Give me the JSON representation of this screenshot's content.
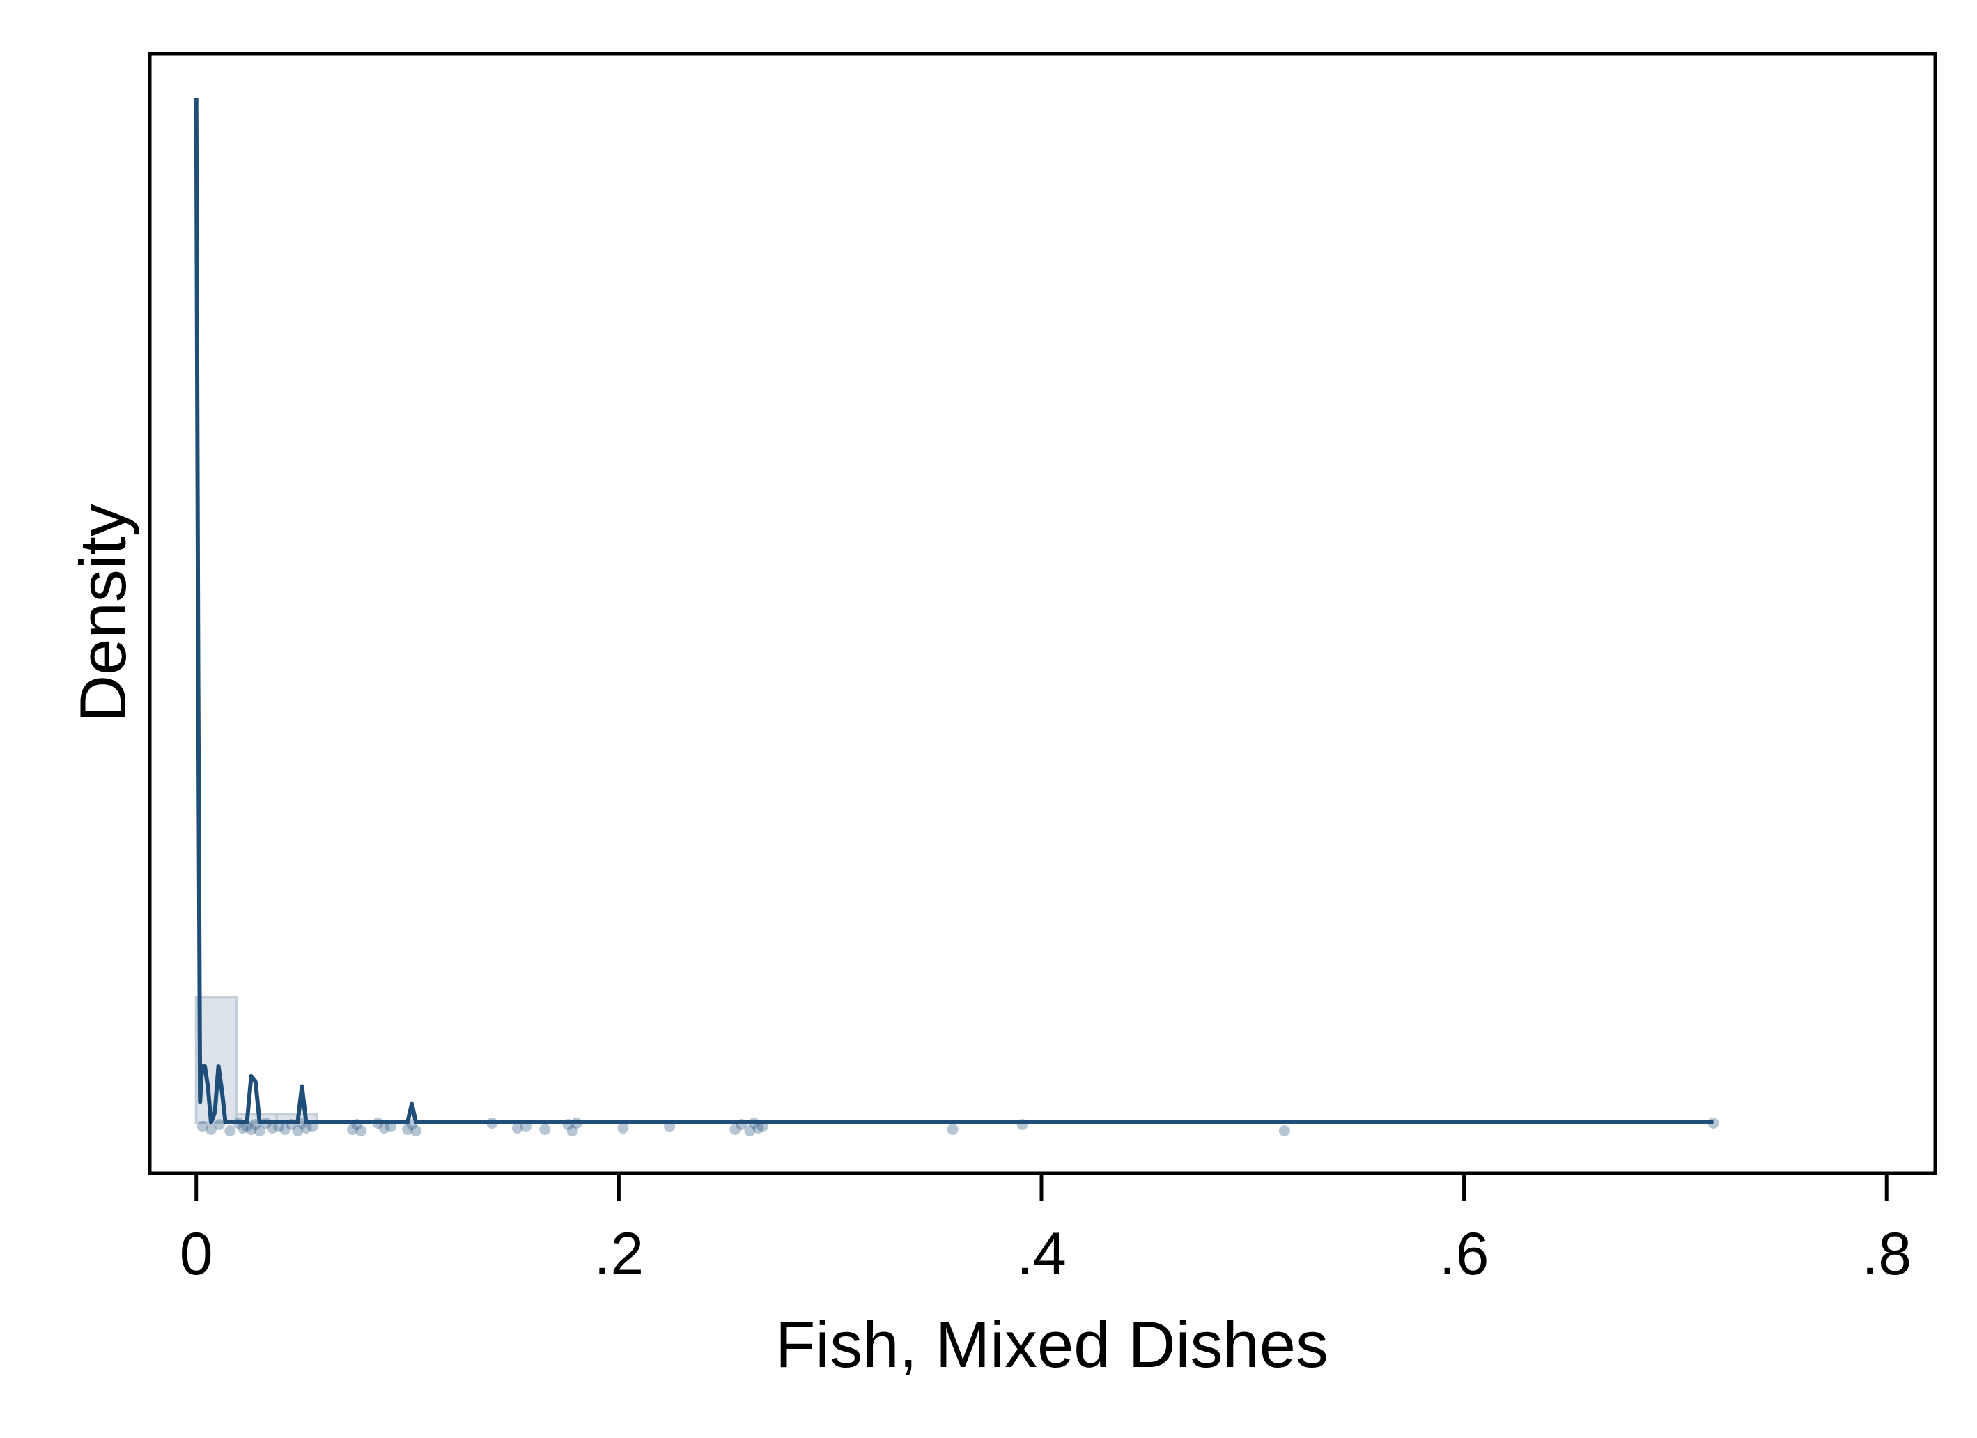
{
  "chart_data": {
    "type": "area",
    "title": "",
    "xlabel": "Fish, Mixed Dishes",
    "ylabel": "Density",
    "xlim": [
      -0.022,
      0.823
    ],
    "xticks": [
      {
        "value": 0,
        "label": "0"
      },
      {
        "value": 0.2,
        "label": ".2"
      },
      {
        "value": 0.4,
        "label": ".4"
      },
      {
        "value": 0.6,
        "label": ".6"
      },
      {
        "value": 0.8,
        "label": ".8"
      }
    ],
    "y_tick_labels_shown": false,
    "grid": false,
    "legend": "none",
    "colors": {
      "line": "#1f4e79",
      "histogram_fill": "#dde3ea",
      "histogram_edge": "#c4ced8",
      "points": "#1f4e79",
      "frame": "#000000"
    },
    "histogram": {
      "bins": [
        {
          "x0": 0.0,
          "x1": 0.019,
          "height": 0.122
        },
        {
          "x0": 0.019,
          "x1": 0.038,
          "height": 0.008
        },
        {
          "x0": 0.038,
          "x1": 0.057,
          "height": 0.008
        }
      ]
    },
    "density_curve": {
      "x": [
        0.0,
        0.0009,
        0.0018,
        0.0027,
        0.004,
        0.0055,
        0.007,
        0.0088,
        0.0105,
        0.0122,
        0.0138,
        0.0155,
        0.018,
        0.021,
        0.024,
        0.026,
        0.028,
        0.03,
        0.032,
        0.034,
        0.038,
        0.042,
        0.045,
        0.048,
        0.05,
        0.052,
        0.054,
        0.056,
        0.06,
        0.07,
        0.075,
        0.08,
        0.09,
        0.098,
        0.1,
        0.102,
        0.104,
        0.106,
        0.11,
        0.2,
        0.3,
        0.4,
        0.5,
        0.6,
        0.7,
        0.718
      ],
      "y": [
        1.0,
        0.44,
        0.02,
        0.055,
        0.055,
        0.035,
        0.0,
        0.01,
        0.055,
        0.03,
        0.0,
        0.0,
        0.0,
        0.0,
        0.0,
        0.045,
        0.04,
        0.0,
        0.0,
        0.0,
        0.0,
        0.0,
        0.0,
        0.0,
        0.035,
        0.0,
        0.0,
        0.0,
        0.0,
        0.0,
        0.0,
        0.0,
        0.0,
        0.0,
        0.0,
        0.018,
        0.0,
        0.0,
        0.0,
        0.0,
        0.0,
        0.0,
        0.0,
        0.0,
        0.0,
        0.0
      ]
    },
    "observations": [
      0.003,
      0.007,
      0.011,
      0.016,
      0.02,
      0.022,
      0.024,
      0.026,
      0.028,
      0.03,
      0.033,
      0.036,
      0.039,
      0.042,
      0.045,
      0.048,
      0.05,
      0.052,
      0.055,
      0.074,
      0.076,
      0.078,
      0.086,
      0.089,
      0.092,
      0.1,
      0.102,
      0.104,
      0.14,
      0.152,
      0.156,
      0.165,
      0.176,
      0.178,
      0.18,
      0.202,
      0.224,
      0.255,
      0.258,
      0.262,
      0.264,
      0.266,
      0.268,
      0.358,
      0.391,
      0.515,
      0.718
    ]
  }
}
